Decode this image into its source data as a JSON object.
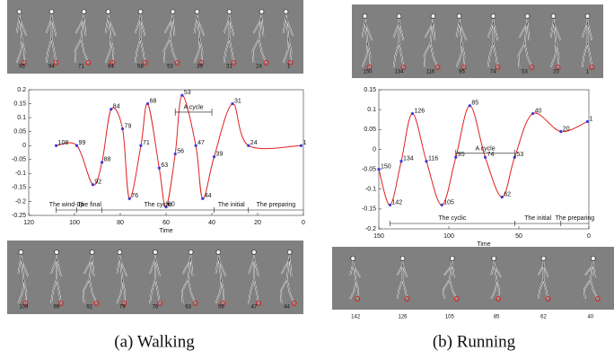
{
  "chart_data": [
    {
      "type": "line",
      "xlabel": "Time",
      "xlim": [
        120,
        0
      ],
      "ylim": [
        -0.25,
        0.2
      ],
      "xticks": [
        120,
        100,
        80,
        60,
        40,
        20,
        0
      ],
      "yticks": [
        -0.25,
        -0.2,
        -0.15,
        -0.1,
        -0.05,
        0,
        0.05,
        0.1,
        0.15,
        0.2
      ],
      "color": "#e02020",
      "marker_color": "#3a3ad8",
      "series": [
        {
          "x": [
            108,
            99,
            92,
            88,
            84,
            79,
            76,
            71,
            68,
            63,
            60,
            56,
            53,
            47,
            44,
            39,
            31,
            24,
            1
          ],
          "values": [
            0,
            0,
            -0.14,
            -0.06,
            0.13,
            0.06,
            -0.19,
            0,
            0.15,
            -0.08,
            -0.22,
            -0.03,
            0.18,
            0,
            -0.19,
            -0.04,
            0.15,
            0,
            0
          ]
        }
      ],
      "cycle": {
        "label": "A cycle",
        "from": 56,
        "to": 40,
        "y": 0.12
      },
      "phases": [
        {
          "label": "The wind-up",
          "from": 108,
          "to": 99
        },
        {
          "label": "The final",
          "from": 99,
          "to": 88
        },
        {
          "label": "The cyclic",
          "from": 88,
          "to": 39
        },
        {
          "label": "The initial",
          "from": 39,
          "to": 24
        },
        {
          "label": "The preparing",
          "from": 24,
          "to": 0
        }
      ]
    },
    {
      "type": "line",
      "xlabel": "Time",
      "xlim": [
        150,
        0
      ],
      "ylim": [
        -0.2,
        0.15
      ],
      "xticks": [
        150,
        100,
        50,
        0
      ],
      "yticks": [
        -0.2,
        -0.15,
        -0.1,
        -0.05,
        0,
        0.05,
        0.1,
        0.15
      ],
      "color": "#e02020",
      "marker_color": "#3a3ad8",
      "series": [
        {
          "x": [
            150,
            142,
            134,
            126,
            116,
            105,
            95,
            85,
            74,
            62,
            53,
            40,
            20,
            1
          ],
          "values": [
            -0.05,
            -0.14,
            -0.03,
            0.09,
            -0.03,
            -0.14,
            -0.02,
            0.11,
            -0.02,
            -0.12,
            -0.02,
            0.09,
            0.045,
            0.07
          ]
        }
      ],
      "cycle": {
        "label": "A cycle",
        "from": 95,
        "to": 53,
        "y": -0.01
      },
      "phases": [
        {
          "label": "The cyclic",
          "from": 142,
          "to": 53
        },
        {
          "label": "The initial",
          "from": 53,
          "to": 20
        },
        {
          "label": "The preparing",
          "from": 20,
          "to": 0
        }
      ]
    }
  ],
  "panels": [
    {
      "caption": "(a) Walking",
      "top_frames": [
        "95",
        "94",
        "71",
        "64",
        "58",
        "53",
        "39",
        "31",
        "24",
        "1"
      ],
      "bottom_frames": [
        "109",
        "99",
        "92",
        "79",
        "76",
        "63",
        "56",
        "47",
        "44"
      ]
    },
    {
      "caption": "(b) Running",
      "top_frames": [
        "150",
        "134",
        "116",
        "95",
        "74",
        "53",
        "20",
        "1"
      ],
      "bottom_frames": [
        "142",
        "126",
        "105",
        "85",
        "62",
        "40"
      ]
    }
  ]
}
